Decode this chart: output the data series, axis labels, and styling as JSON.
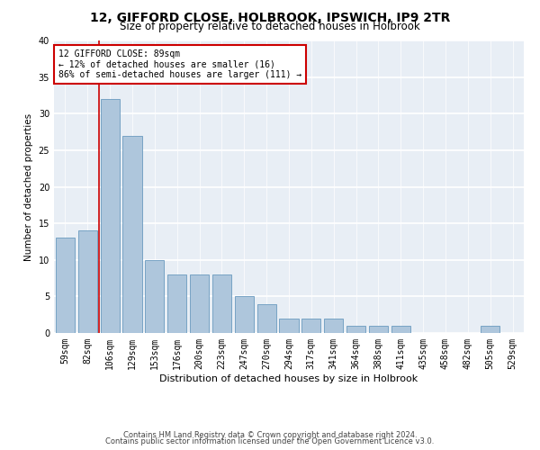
{
  "title1": "12, GIFFORD CLOSE, HOLBROOK, IPSWICH, IP9 2TR",
  "title2": "Size of property relative to detached houses in Holbrook",
  "xlabel": "Distribution of detached houses by size in Holbrook",
  "ylabel": "Number of detached properties",
  "categories": [
    "59sqm",
    "82sqm",
    "106sqm",
    "129sqm",
    "153sqm",
    "176sqm",
    "200sqm",
    "223sqm",
    "247sqm",
    "270sqm",
    "294sqm",
    "317sqm",
    "341sqm",
    "364sqm",
    "388sqm",
    "411sqm",
    "435sqm",
    "458sqm",
    "482sqm",
    "505sqm",
    "529sqm"
  ],
  "values": [
    13,
    14,
    32,
    27,
    10,
    8,
    8,
    8,
    5,
    4,
    2,
    2,
    2,
    1,
    1,
    1,
    0,
    0,
    0,
    1,
    0
  ],
  "bar_color": "#aec6dc",
  "bar_edge_color": "#6a9abf",
  "background_color": "#e8eef5",
  "grid_color": "#ffffff",
  "annotation_box_color": "#cc0000",
  "annotation_line1": "12 GIFFORD CLOSE: 89sqm",
  "annotation_line2": "← 12% of detached houses are smaller (16)",
  "annotation_line3": "86% of semi-detached houses are larger (111) →",
  "property_line_x": 1.5,
  "ylim": [
    0,
    40
  ],
  "yticks": [
    0,
    5,
    10,
    15,
    20,
    25,
    30,
    35,
    40
  ],
  "footer1": "Contains HM Land Registry data © Crown copyright and database right 2024.",
  "footer2": "Contains public sector information licensed under the Open Government Licence v3.0.",
  "title1_fontsize": 10,
  "title2_fontsize": 8.5,
  "xlabel_fontsize": 8,
  "ylabel_fontsize": 7.5,
  "tick_fontsize": 7,
  "annot_fontsize": 7,
  "footer_fontsize": 6
}
